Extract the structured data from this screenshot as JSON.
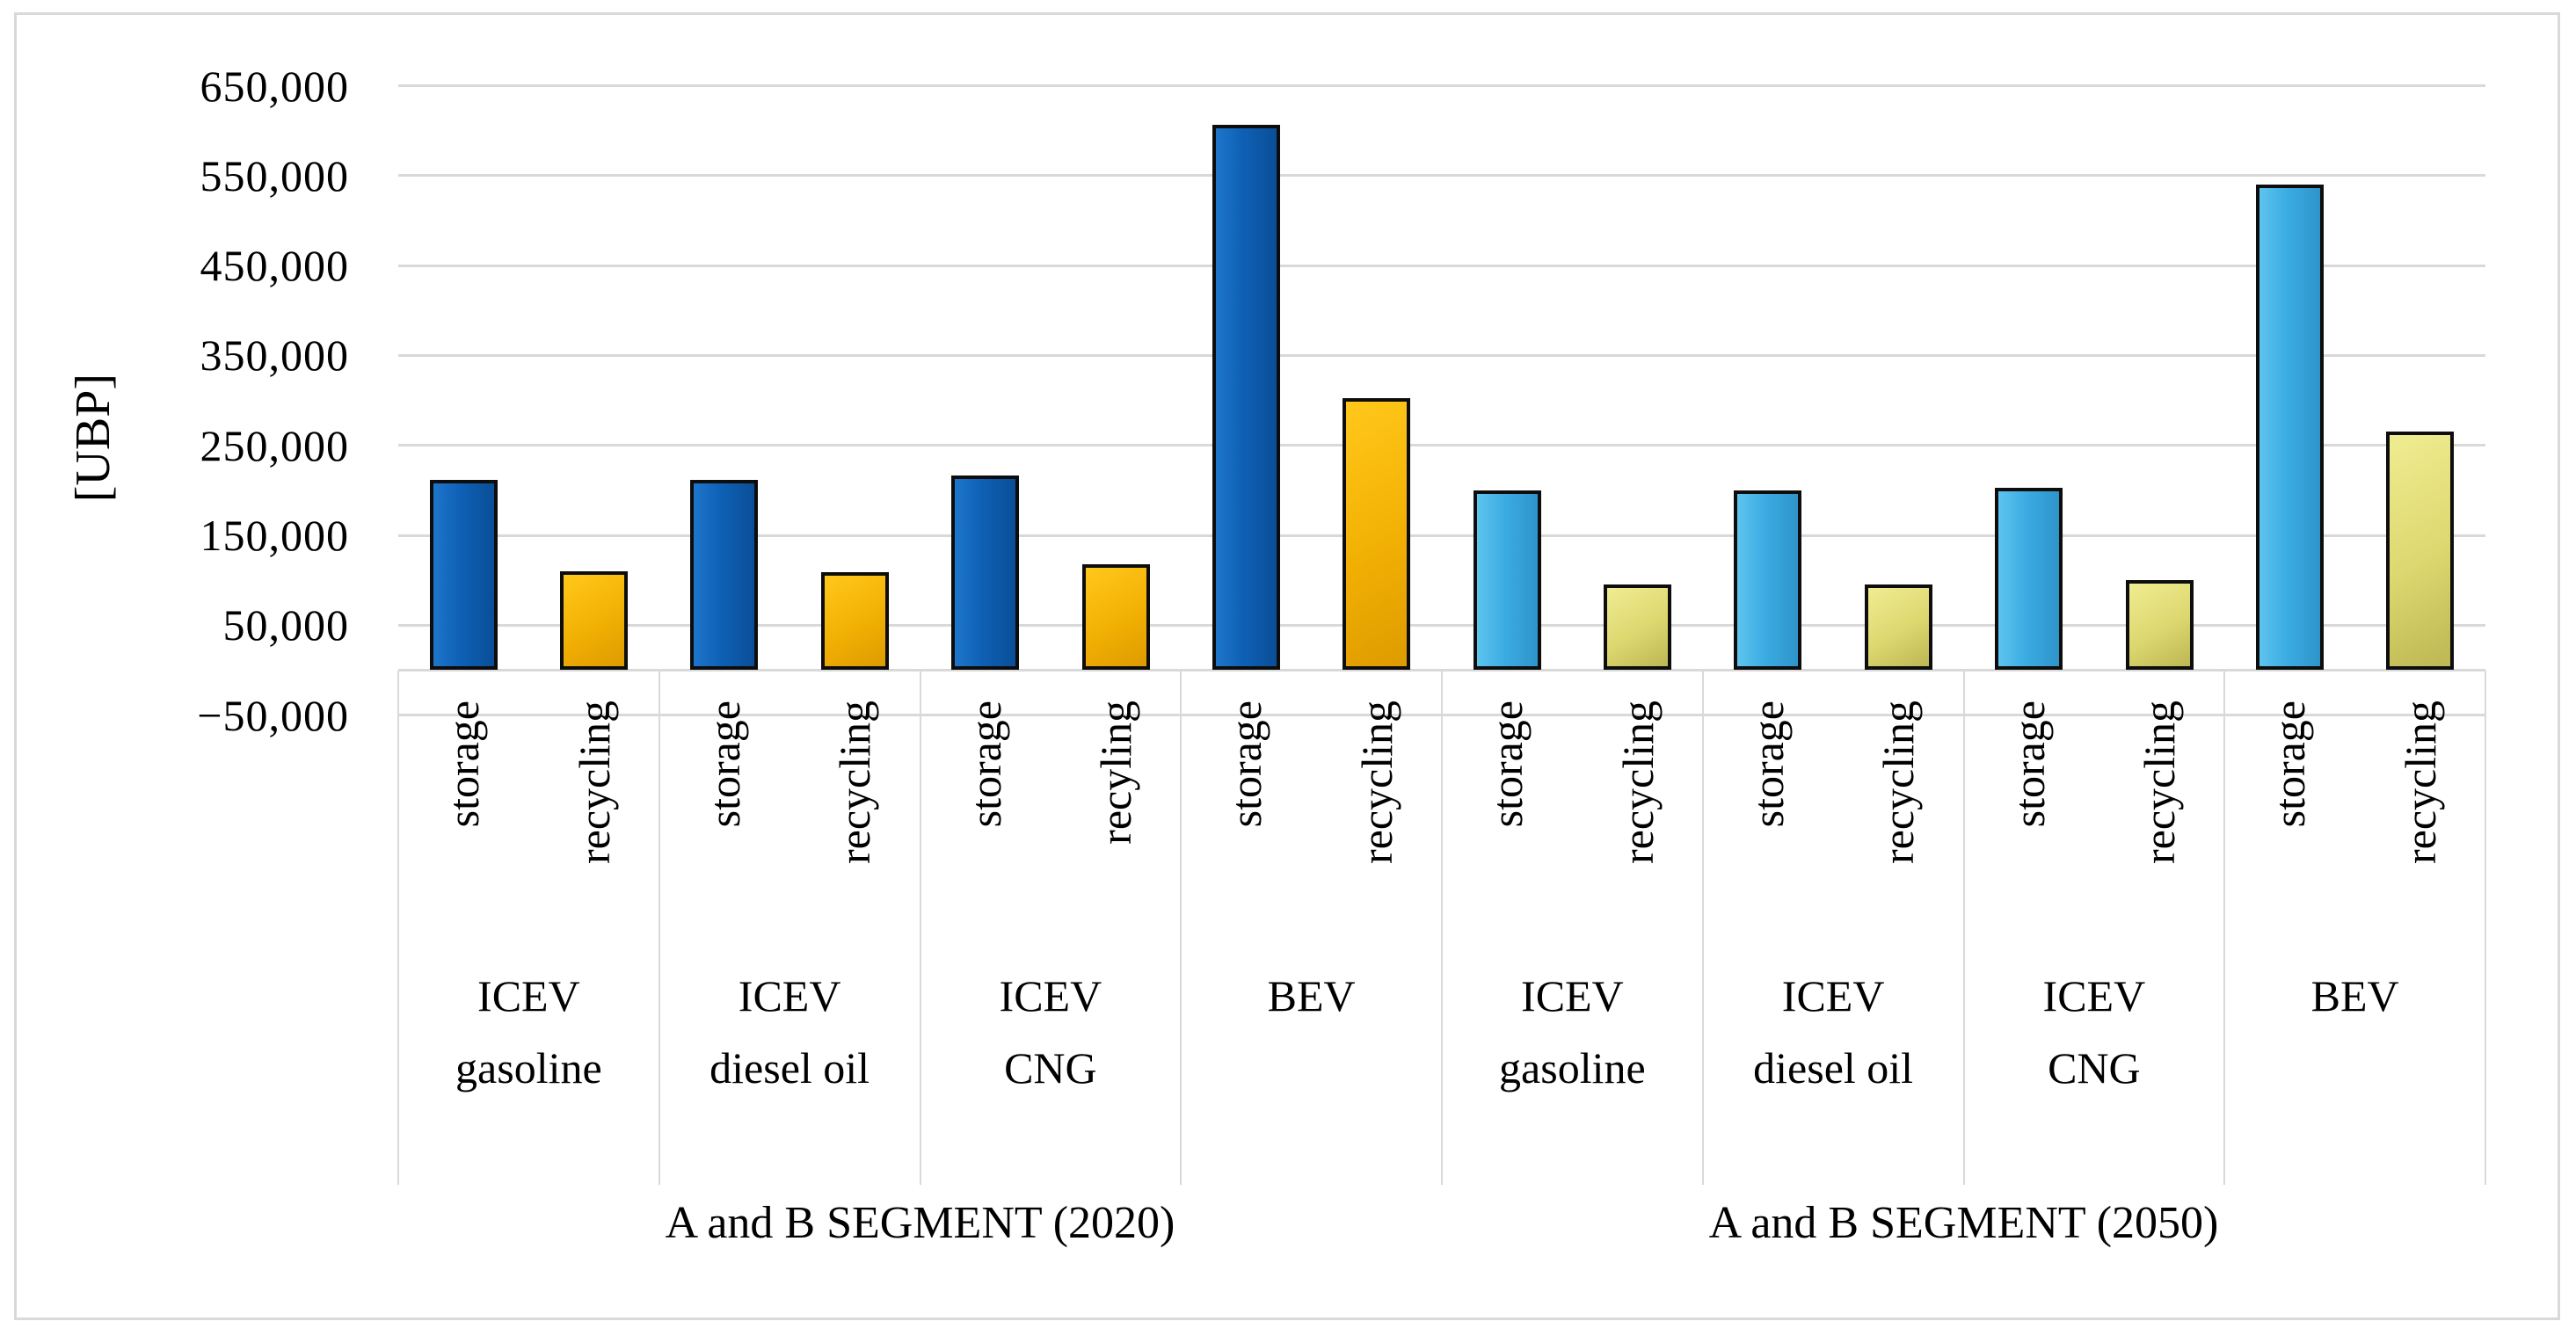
{
  "figure": {
    "background": "#ffffff",
    "border_color": "#d9d9d9"
  },
  "chart_data": {
    "type": "bar",
    "title": "",
    "ylabel": "[UBP]",
    "xlabel": "",
    "legend": null,
    "y_axis": {
      "min": -50000,
      "max": 650000,
      "tick_step": 100000,
      "tick_values": [
        650000,
        550000,
        450000,
        350000,
        250000,
        150000,
        50000,
        -50000
      ],
      "tick_labels": [
        "650,000",
        "550,000",
        "450,000",
        "350,000",
        "250,000",
        "150,000",
        "50,000",
        "−50,000"
      ],
      "gridlines": true
    },
    "segments": [
      {
        "label": "A and B SEGMENT (2020)",
        "groups": [
          {
            "label_lines": [
              "ICEV",
              "gasoline"
            ],
            "bars": [
              {
                "label": "storage",
                "series": "storage_2020",
                "value": 212000
              },
              {
                "label": "recycling",
                "series": "recycling_2020",
                "value": 110000
              }
            ]
          },
          {
            "label_lines": [
              "ICEV",
              "diesel oil"
            ],
            "bars": [
              {
                "label": "storage",
                "series": "storage_2020",
                "value": 212000
              },
              {
                "label": "recycling",
                "series": "recycling_2020",
                "value": 109000
              }
            ]
          },
          {
            "label_lines": [
              "ICEV",
              "CNG"
            ],
            "bars": [
              {
                "label": "storage",
                "series": "storage_2020",
                "value": 217000
              },
              {
                "label": "recyling",
                "series": "recycling_2020",
                "value": 118000
              }
            ]
          },
          {
            "label_lines": [
              "BEV"
            ],
            "bars": [
              {
                "label": "storage",
                "series": "storage_2020",
                "value": 607000
              },
              {
                "label": "recycling",
                "series": "recycling_2020",
                "value": 303000
              }
            ]
          }
        ]
      },
      {
        "label": "A and B SEGMENT (2050)",
        "groups": [
          {
            "label_lines": [
              "ICEV",
              "gasoline"
            ],
            "bars": [
              {
                "label": "storage",
                "series": "storage_2050",
                "value": 200000
              },
              {
                "label": "recycling",
                "series": "recycling_2050",
                "value": 95000
              }
            ]
          },
          {
            "label_lines": [
              "ICEV",
              "diesel oil"
            ],
            "bars": [
              {
                "label": "storage",
                "series": "storage_2050",
                "value": 200000
              },
              {
                "label": "recycling",
                "series": "recycling_2050",
                "value": 95000
              }
            ]
          },
          {
            "label_lines": [
              "ICEV",
              "CNG"
            ],
            "bars": [
              {
                "label": "storage",
                "series": "storage_2050",
                "value": 203000
              },
              {
                "label": "recycling",
                "series": "recycling_2050",
                "value": 100000
              }
            ]
          },
          {
            "label_lines": [
              "BEV"
            ],
            "bars": [
              {
                "label": "storage",
                "series": "storage_2050",
                "value": 540000
              },
              {
                "label": "recycling",
                "series": "recycling_2050",
                "value": 265000
              }
            ]
          }
        ]
      }
    ],
    "colors": {
      "storage_2020": {
        "light": "#1e76ca",
        "mid": "#0e60b5",
        "dark": "#0a4e97"
      },
      "recycling_2020": {
        "light": "#ffc81a",
        "mid": "#f2b004",
        "dark": "#de9b00"
      },
      "storage_2050": {
        "light": "#5ec4ee",
        "mid": "#3bace3",
        "dark": "#2e94c9"
      },
      "recycling_2050": {
        "light": "#f0ed92",
        "mid": "#ddd76f",
        "dark": "#bdb754"
      },
      "bar_outline": "#0d0d0d",
      "gridline": "#d9d9d9",
      "category_line": "#d9d9d9",
      "text": "#000000"
    }
  }
}
